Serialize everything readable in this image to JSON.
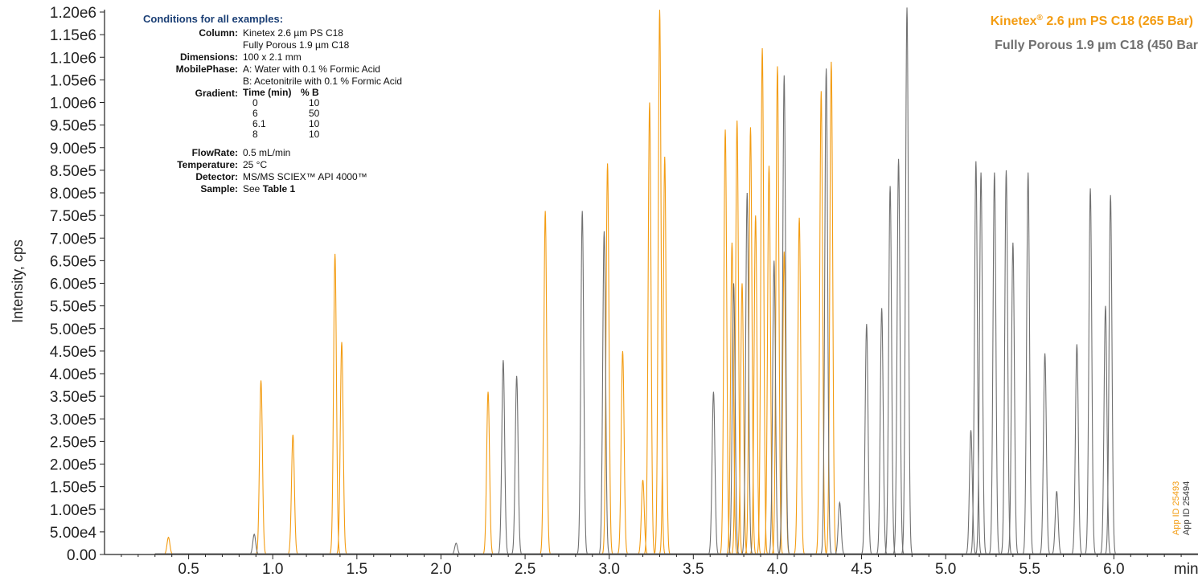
{
  "chart_data": {
    "type": "line",
    "ylabel": "Intensity, cps",
    "xunit_label": "min",
    "xlim": [
      0.0,
      6.5
    ],
    "ylim": [
      0,
      1200000
    ],
    "x_ticks": [
      0.5,
      1.0,
      1.5,
      2.0,
      2.5,
      3.0,
      3.5,
      4.0,
      4.5,
      5.0,
      5.5,
      6.0
    ],
    "x_tick_labels": [
      "0.5",
      "1.0",
      "1.5",
      "2.0",
      "2.5",
      "3.0",
      "3.5",
      "4.0",
      "4.5",
      "5.0",
      "5.5",
      "6.0"
    ],
    "y_ticks": [
      0,
      50000,
      100000,
      150000,
      200000,
      250000,
      300000,
      350000,
      400000,
      450000,
      500000,
      550000,
      600000,
      650000,
      700000,
      750000,
      800000,
      850000,
      900000,
      950000,
      1000000,
      1050000,
      1100000,
      1150000,
      1200000
    ],
    "y_tick_labels": [
      "0.00",
      "5.00e4",
      "1.00e5",
      "1.50e5",
      "2.00e5",
      "2.50e5",
      "3.00e5",
      "3.50e5",
      "4.00e5",
      "4.50e5",
      "5.00e5",
      "5.50e5",
      "6.00e5",
      "6.50e5",
      "7.00e5",
      "7.50e5",
      "8.00e5",
      "8.50e5",
      "9.00e5",
      "9.50e5",
      "1.00e6",
      "1.05e6",
      "1.10e6",
      "1.15e6",
      "1.20e6"
    ],
    "grid": false,
    "legend_position": "top-right",
    "series": [
      {
        "name": "Kinetex® 2.6 µm PS C18 (265 Bar)",
        "color": "#f39c12",
        "peaks": [
          {
            "rt": 0.38,
            "height": 38000
          },
          {
            "rt": 0.93,
            "height": 385000
          },
          {
            "rt": 1.12,
            "height": 265000
          },
          {
            "rt": 1.37,
            "height": 665000
          },
          {
            "rt": 1.41,
            "height": 470000
          },
          {
            "rt": 2.28,
            "height": 360000
          },
          {
            "rt": 2.62,
            "height": 760000
          },
          {
            "rt": 2.99,
            "height": 865000
          },
          {
            "rt": 3.08,
            "height": 450000
          },
          {
            "rt": 3.2,
            "height": 165000
          },
          {
            "rt": 3.24,
            "height": 1000000
          },
          {
            "rt": 3.3,
            "height": 1205000
          },
          {
            "rt": 3.33,
            "height": 880000
          },
          {
            "rt": 3.69,
            "height": 940000
          },
          {
            "rt": 3.73,
            "height": 690000
          },
          {
            "rt": 3.76,
            "height": 960000
          },
          {
            "rt": 3.79,
            "height": 600000
          },
          {
            "rt": 3.84,
            "height": 945000
          },
          {
            "rt": 3.87,
            "height": 750000
          },
          {
            "rt": 3.91,
            "height": 1120000
          },
          {
            "rt": 3.95,
            "height": 860000
          },
          {
            "rt": 4.0,
            "height": 1080000
          },
          {
            "rt": 4.04,
            "height": 670000
          },
          {
            "rt": 4.13,
            "height": 745000
          },
          {
            "rt": 4.26,
            "height": 1025000
          },
          {
            "rt": 4.32,
            "height": 1090000
          }
        ]
      },
      {
        "name": "Fully Porous 1.9 µm C18 (450 Bar)",
        "color": "#707070",
        "peaks": [
          {
            "rt": 0.89,
            "height": 45000
          },
          {
            "rt": 2.09,
            "height": 25000
          },
          {
            "rt": 2.37,
            "height": 430000
          },
          {
            "rt": 2.45,
            "height": 395000
          },
          {
            "rt": 2.84,
            "height": 760000
          },
          {
            "rt": 2.97,
            "height": 715000
          },
          {
            "rt": 3.62,
            "height": 360000
          },
          {
            "rt": 3.74,
            "height": 600000
          },
          {
            "rt": 3.82,
            "height": 800000
          },
          {
            "rt": 3.98,
            "height": 650000
          },
          {
            "rt": 4.04,
            "height": 1060000
          },
          {
            "rt": 4.29,
            "height": 1075000
          },
          {
            "rt": 4.37,
            "height": 115000
          },
          {
            "rt": 4.53,
            "height": 510000
          },
          {
            "rt": 4.62,
            "height": 545000
          },
          {
            "rt": 4.67,
            "height": 815000
          },
          {
            "rt": 4.72,
            "height": 875000
          },
          {
            "rt": 4.77,
            "height": 1210000
          },
          {
            "rt": 5.15,
            "height": 275000
          },
          {
            "rt": 5.18,
            "height": 870000
          },
          {
            "rt": 5.21,
            "height": 845000
          },
          {
            "rt": 5.29,
            "height": 845000
          },
          {
            "rt": 5.36,
            "height": 850000
          },
          {
            "rt": 5.4,
            "height": 690000
          },
          {
            "rt": 5.49,
            "height": 845000
          },
          {
            "rt": 5.59,
            "height": 445000
          },
          {
            "rt": 5.66,
            "height": 140000
          },
          {
            "rt": 5.78,
            "height": 465000
          },
          {
            "rt": 5.86,
            "height": 810000
          },
          {
            "rt": 5.95,
            "height": 550000
          },
          {
            "rt": 5.98,
            "height": 795000
          }
        ]
      }
    ]
  },
  "legend": {
    "series1_prefix": "Kinetex",
    "series1_reg": "®",
    "series1_suffix": " 2.6 µm PS C18 (265 Bar)",
    "series2": "Fully Porous 1.9 µm C18 (450 Bar"
  },
  "app_ids": {
    "orange": "App ID 25493",
    "gray": "App ID 25494"
  },
  "conditions": {
    "title": "Conditions for all examples:",
    "column_key": "Column:",
    "column_val1": "Kinetex 2.6 µm PS C18",
    "column_val2": "Fully Porous 1.9 µm C18",
    "dimensions_key": "Dimensions:",
    "dimensions_val": "100 x 2.1 mm",
    "mobile_key": "MobilePhase:",
    "mobile_val1": "A: Water with 0.1 % Formic Acid",
    "mobile_val2": "B: Acetonitrile with 0.1 % Formic Acid",
    "gradient_key": "Gradient:",
    "gradient_headers": [
      "Time (min)",
      "% B"
    ],
    "gradient_rows": [
      [
        "0",
        "10"
      ],
      [
        "6",
        "50"
      ],
      [
        "6.1",
        "10"
      ],
      [
        "8",
        "10"
      ]
    ],
    "flow_key": "FlowRate:",
    "flow_val": "0.5 mL/min",
    "temp_key": "Temperature:",
    "temp_val": "25 °C",
    "detector_key": "Detector:",
    "detector_val": "MS/MS SCIEX™ API 4000™",
    "sample_key": "Sample:",
    "sample_val_prefix": "See ",
    "sample_val_bold": "Table 1"
  }
}
